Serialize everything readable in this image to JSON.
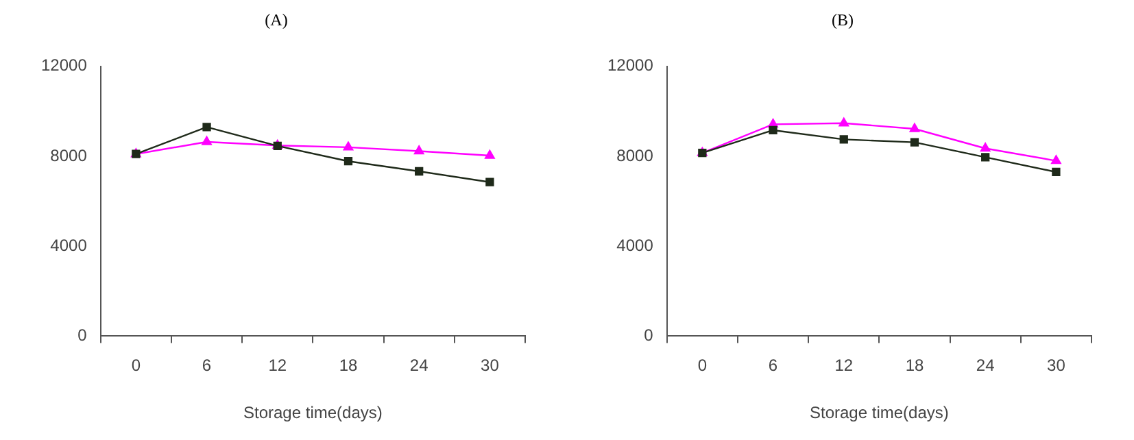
{
  "chart_data": [
    {
      "type": "line",
      "title": "(A)",
      "xlabel": "Storage time(days)",
      "categories": [
        "0",
        "6",
        "12",
        "18",
        "24",
        "30"
      ],
      "series": [
        {
          "color": "#1f2a1a",
          "marker": "square",
          "values": [
            8100,
            9300,
            8460,
            7780,
            7330,
            6850
          ]
        },
        {
          "color": "#ff00ff",
          "marker": "triangle",
          "values": [
            8100,
            8640,
            8480,
            8400,
            8230,
            8030
          ]
        }
      ],
      "ylim": [
        0,
        12000
      ],
      "yticks": [
        0,
        4000,
        8000,
        12000
      ],
      "grid": false,
      "legend": false
    },
    {
      "type": "line",
      "title": "(B)",
      "xlabel": "Storage time(days)",
      "categories": [
        "0",
        "6",
        "12",
        "18",
        "24",
        "30"
      ],
      "series": [
        {
          "color": "#1f2a1a",
          "marker": "square",
          "values": [
            8150,
            9160,
            8750,
            8620,
            7960,
            7300
          ]
        },
        {
          "color": "#ff00ff",
          "marker": "triangle",
          "values": [
            8150,
            9420,
            9470,
            9220,
            8350,
            7800
          ]
        }
      ],
      "ylim": [
        0,
        12000
      ],
      "yticks": [
        0,
        4000,
        8000,
        12000
      ],
      "grid": false,
      "legend": false
    }
  ]
}
